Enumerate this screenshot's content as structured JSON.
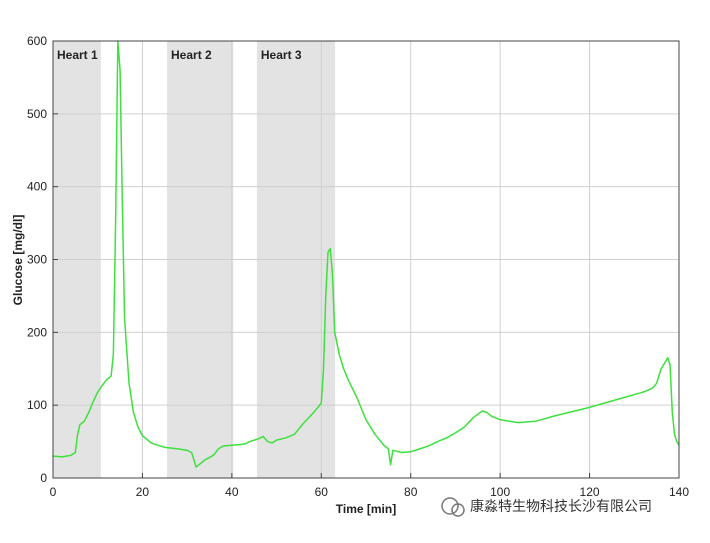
{
  "chart_data": {
    "type": "line",
    "xlabel": "Time [min]",
    "ylabel": "Glucose [mg/dl]",
    "xlim": [
      0,
      140
    ],
    "ylim": [
      0,
      600
    ],
    "xticks": [
      0,
      20,
      40,
      60,
      80,
      100,
      120,
      140
    ],
    "yticks": [
      0,
      100,
      200,
      300,
      400,
      500,
      600
    ],
    "grid": true,
    "regions": [
      {
        "label": "Heart 1",
        "start": 0,
        "end": 10.7,
        "color": "#e3e3e3"
      },
      {
        "label": "Heart 2",
        "start": 25.5,
        "end": 40.3,
        "color": "#e3e3e3"
      },
      {
        "label": "Heart 3",
        "start": 45.6,
        "end": 63.1,
        "color": "#e3e3e3"
      }
    ],
    "x": [
      0,
      2,
      4,
      5,
      5.5,
      6,
      7,
      8,
      9,
      10,
      11,
      12,
      13,
      13.5,
      14,
      14.5,
      15,
      15.5,
      16,
      17,
      18,
      19,
      20,
      22,
      25,
      28,
      30,
      31,
      32,
      33,
      34,
      35,
      36,
      37,
      38,
      40,
      42,
      43,
      44,
      46,
      47,
      48,
      49,
      50,
      52,
      54,
      56,
      58,
      59,
      60,
      60.5,
      61,
      61.5,
      62,
      62.5,
      63,
      64,
      65,
      66,
      68,
      70,
      72,
      74,
      75,
      75.5,
      76,
      78,
      80,
      82,
      84,
      86,
      88,
      90,
      92,
      94,
      96,
      97,
      98,
      100,
      104,
      108,
      112,
      116,
      120,
      124,
      128,
      132,
      134,
      135,
      136,
      137,
      137.5,
      138,
      138.5,
      139,
      139.5,
      140
    ],
    "series": [
      {
        "name": "Glucose",
        "color": "#3ee03e",
        "values": [
          30,
          29,
          31,
          35,
          60,
          73,
          78,
          90,
          105,
          118,
          127,
          135,
          140,
          170,
          350,
          600,
          560,
          380,
          220,
          130,
          90,
          70,
          58,
          48,
          42,
          40,
          38,
          35,
          15,
          20,
          25,
          28,
          32,
          40,
          44,
          45,
          46,
          47,
          50,
          54,
          57,
          50,
          48,
          52,
          55,
          60,
          75,
          88,
          95,
          103,
          150,
          250,
          310,
          315,
          280,
          200,
          170,
          150,
          135,
          110,
          80,
          60,
          45,
          40,
          18,
          38,
          35,
          36,
          40,
          44,
          50,
          55,
          62,
          70,
          83,
          92,
          90,
          85,
          80,
          76,
          78,
          85,
          91,
          97,
          104,
          111,
          118,
          123,
          130,
          150,
          160,
          165,
          155,
          90,
          60,
          50,
          45
        ]
      }
    ]
  },
  "watermark": "康淼特生物科技长沙有限公司"
}
